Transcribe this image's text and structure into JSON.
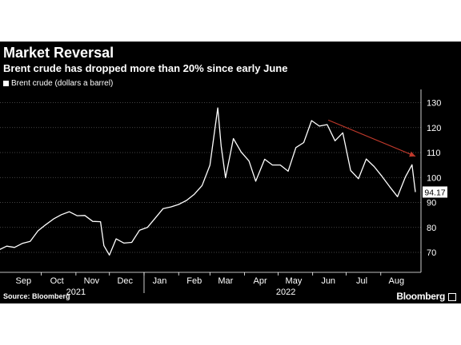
{
  "header": {
    "title": "Market Reversal",
    "subtitle": "Brent crude has dropped more than 20% since early June"
  },
  "footer": {
    "source": "Source: Bloomberg",
    "brand": "Bloomberg"
  },
  "colors": {
    "background": "#000000",
    "line": "#ffffff",
    "trend_arrow": "#c0392b",
    "text": "#ffffff"
  },
  "chart_data": {
    "type": "line",
    "series": [
      {
        "name": "Brent crude (dollars a barrel)",
        "last_value_label": "94.17",
        "points": [
          [
            "2021-08-24",
            71.0
          ],
          [
            "2021-08-31",
            72.5
          ],
          [
            "2021-09-07",
            72.0
          ],
          [
            "2021-09-14",
            73.6
          ],
          [
            "2021-09-21",
            74.4
          ],
          [
            "2021-09-28",
            78.6
          ],
          [
            "2021-10-05",
            81.1
          ],
          [
            "2021-10-12",
            83.4
          ],
          [
            "2021-10-19",
            85.1
          ],
          [
            "2021-10-26",
            86.3
          ],
          [
            "2021-11-02",
            84.7
          ],
          [
            "2021-11-09",
            84.8
          ],
          [
            "2021-11-16",
            82.4
          ],
          [
            "2021-11-23",
            82.3
          ],
          [
            "2021-11-26",
            72.7
          ],
          [
            "2021-12-01",
            68.9
          ],
          [
            "2021-12-07",
            75.4
          ],
          [
            "2021-12-14",
            73.7
          ],
          [
            "2021-12-21",
            74.0
          ],
          [
            "2021-12-28",
            78.9
          ],
          [
            "2022-01-04",
            80.0
          ],
          [
            "2022-01-11",
            83.7
          ],
          [
            "2022-01-18",
            87.5
          ],
          [
            "2022-01-25",
            88.2
          ],
          [
            "2022-02-01",
            89.2
          ],
          [
            "2022-02-08",
            90.8
          ],
          [
            "2022-02-15",
            93.3
          ],
          [
            "2022-02-22",
            96.8
          ],
          [
            "2022-03-01",
            104.9
          ],
          [
            "2022-03-08",
            127.9
          ],
          [
            "2022-03-11",
            112.7
          ],
          [
            "2022-03-15",
            99.9
          ],
          [
            "2022-03-22",
            115.6
          ],
          [
            "2022-03-29",
            110.2
          ],
          [
            "2022-04-05",
            106.6
          ],
          [
            "2022-04-11",
            98.5
          ],
          [
            "2022-04-19",
            107.3
          ],
          [
            "2022-04-26",
            105.0
          ],
          [
            "2022-05-03",
            105.0
          ],
          [
            "2022-05-10",
            102.5
          ],
          [
            "2022-05-17",
            112.0
          ],
          [
            "2022-05-24",
            114.0
          ],
          [
            "2022-05-31",
            122.8
          ],
          [
            "2022-06-07",
            120.6
          ],
          [
            "2022-06-14",
            121.2
          ],
          [
            "2022-06-21",
            114.7
          ],
          [
            "2022-06-28",
            117.9
          ],
          [
            "2022-07-05",
            102.8
          ],
          [
            "2022-07-12",
            99.5
          ],
          [
            "2022-07-19",
            107.4
          ],
          [
            "2022-07-26",
            104.4
          ],
          [
            "2022-08-02",
            100.5
          ],
          [
            "2022-08-09",
            96.3
          ],
          [
            "2022-08-16",
            92.3
          ],
          [
            "2022-08-23",
            100.2
          ],
          [
            "2022-08-29",
            105.1
          ],
          [
            "2022-09-01",
            94.17
          ]
        ]
      }
    ],
    "x_range": [
      "2021-08-25",
      "2022-09-06"
    ],
    "ylim": [
      62,
      134
    ],
    "y_ticks": [
      70,
      80,
      90,
      100,
      110,
      120,
      130
    ],
    "y_axis_side": "right",
    "x_ticks": [
      {
        "label": "Sep",
        "date": "2021-09-15"
      },
      {
        "label": "Oct",
        "date": "2021-10-15"
      },
      {
        "label": "Nov",
        "date": "2021-11-15"
      },
      {
        "label": "Dec",
        "date": "2021-12-15"
      },
      {
        "label": "Jan",
        "date": "2022-01-15"
      },
      {
        "label": "Feb",
        "date": "2022-02-15"
      },
      {
        "label": "Mar",
        "date": "2022-03-15"
      },
      {
        "label": "Apr",
        "date": "2022-04-15"
      },
      {
        "label": "May",
        "date": "2022-05-15"
      },
      {
        "label": "Jun",
        "date": "2022-06-15"
      },
      {
        "label": "Jul",
        "date": "2022-07-15"
      },
      {
        "label": "Aug",
        "date": "2022-08-15"
      }
    ],
    "x_tick_marks": [
      "2021-10-01",
      "2021-11-01",
      "2021-12-01",
      "2022-01-01",
      "2022-02-01",
      "2022-03-01",
      "2022-04-01",
      "2022-05-01",
      "2022-06-01",
      "2022-07-01",
      "2022-08-01"
    ],
    "year_labels": [
      {
        "label": "2021",
        "date": "2021-11-01"
      },
      {
        "label": "2022",
        "date": "2022-05-08"
      }
    ],
    "year_divider": "2022-01-01",
    "annotations": [
      {
        "type": "arrow",
        "from": [
          "2022-06-15",
          123.0
        ],
        "to": [
          "2022-09-01",
          108.5
        ]
      }
    ],
    "grid": "horizontal dotted",
    "legend": "top-left"
  }
}
